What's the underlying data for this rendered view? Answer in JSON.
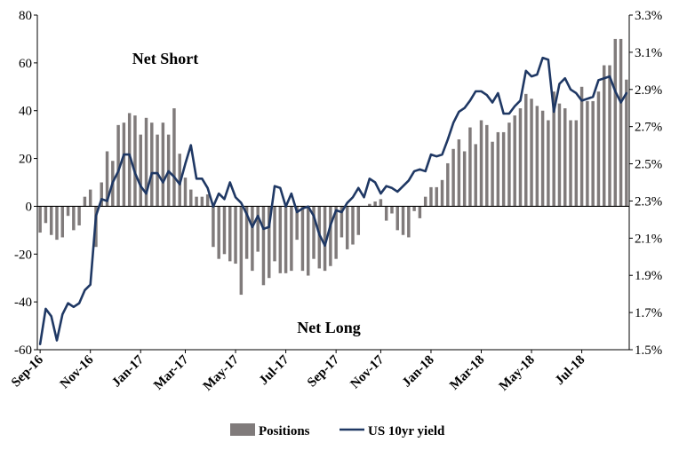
{
  "chart_data": {
    "type": "bar+line",
    "title": "",
    "annotations": [
      "Net Short",
      "Net Long"
    ],
    "x_tick_labels": [
      "Sep-16",
      "Nov-16",
      "Jan-17",
      "Mar-17",
      "May-17",
      "Jul-17",
      "Sep-17",
      "Nov-17",
      "Jan-18",
      "Mar-18",
      "May-18",
      "Jul-18"
    ],
    "y_left": {
      "lim": [
        -60,
        80
      ],
      "ticks": [
        "80",
        "60",
        "40",
        "20",
        "0",
        "-20",
        "-40",
        "-60"
      ],
      "tick_values": [
        80,
        60,
        40,
        20,
        0,
        -20,
        -40,
        -60
      ]
    },
    "y_right": {
      "lim": [
        1.5,
        3.3
      ],
      "ticks": [
        "3.3%",
        "3.1%",
        "2.9%",
        "2.7%",
        "2.5%",
        "2.3%",
        "2.1%",
        "1.9%",
        "1.7%",
        "1.5%"
      ],
      "tick_values": [
        3.3,
        3.1,
        2.9,
        2.7,
        2.5,
        2.3,
        2.1,
        1.9,
        1.7,
        1.5
      ]
    },
    "grid": false,
    "legend_position": "bottom-center",
    "colors": {
      "bars": "#807b7b",
      "line": "#1f3864",
      "axis": "#000000"
    },
    "series": [
      {
        "name": "Positions",
        "kind": "bar",
        "axis": "left",
        "values": [
          -11,
          -7,
          -12,
          -14,
          -13,
          -4,
          -10,
          -8,
          4,
          7,
          -17,
          10,
          23,
          19,
          34,
          35,
          39,
          38,
          30,
          37,
          35,
          30,
          35,
          30,
          41,
          22,
          12,
          7,
          4,
          4,
          5,
          -17,
          -22,
          -20,
          -23,
          -24,
          -37,
          -22,
          -27,
          -19,
          -33,
          -30,
          -23,
          -28,
          -28,
          -27,
          -14,
          -27,
          -29,
          -22,
          -26,
          -27,
          -25,
          -22,
          -13,
          -18,
          -16,
          -12,
          0,
          1,
          2,
          3,
          -6,
          -3,
          -10,
          -12,
          -13,
          -2,
          -5,
          4,
          8,
          8,
          11,
          18,
          24,
          28,
          23,
          33,
          26,
          36,
          34,
          27,
          31,
          31,
          35,
          38,
          41,
          47,
          45,
          42,
          40,
          36,
          48,
          43,
          41,
          36,
          36,
          50,
          44,
          44,
          48,
          59,
          59,
          70,
          70,
          53
        ]
      },
      {
        "name": "US 10yr yield",
        "kind": "line",
        "axis": "right",
        "values": [
          1.53,
          1.72,
          1.68,
          1.55,
          1.69,
          1.75,
          1.73,
          1.75,
          1.82,
          1.85,
          2.22,
          2.31,
          2.3,
          2.4,
          2.46,
          2.55,
          2.55,
          2.45,
          2.38,
          2.34,
          2.45,
          2.45,
          2.4,
          2.46,
          2.43,
          2.39,
          2.5,
          2.6,
          2.42,
          2.42,
          2.37,
          2.27,
          2.34,
          2.31,
          2.4,
          2.32,
          2.29,
          2.23,
          2.16,
          2.22,
          2.15,
          2.16,
          2.38,
          2.37,
          2.27,
          2.34,
          2.24,
          2.26,
          2.27,
          2.22,
          2.12,
          2.06,
          2.17,
          2.25,
          2.24,
          2.29,
          2.32,
          2.37,
          2.32,
          2.42,
          2.4,
          2.34,
          2.38,
          2.37,
          2.35,
          2.38,
          2.41,
          2.46,
          2.47,
          2.46,
          2.55,
          2.54,
          2.55,
          2.63,
          2.72,
          2.78,
          2.8,
          2.84,
          2.89,
          2.89,
          2.87,
          2.83,
          2.88,
          2.77,
          2.77,
          2.81,
          2.84,
          3.0,
          2.97,
          2.98,
          3.07,
          3.06,
          2.78,
          2.93,
          2.96,
          2.9,
          2.88,
          2.84,
          2.85,
          2.86,
          2.95,
          2.96,
          2.97,
          2.89,
          2.83,
          2.88
        ]
      }
    ]
  }
}
